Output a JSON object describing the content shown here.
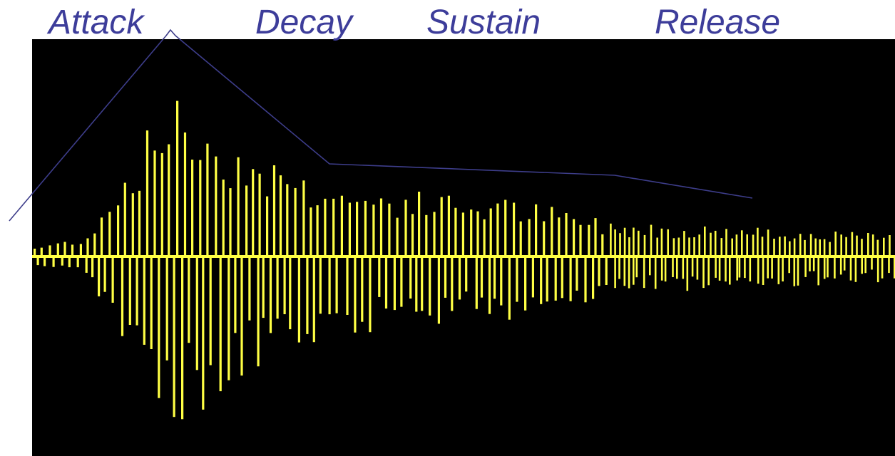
{
  "phases": {
    "attack": "Attack",
    "decay": "Decay",
    "sustain": "Sustain",
    "release": "Release"
  },
  "colors": {
    "label": "#3d3d9a",
    "envelope": "#3d3d8a",
    "wave": "#ffff44",
    "panel": "#000000",
    "background": "#ffffff"
  }
}
